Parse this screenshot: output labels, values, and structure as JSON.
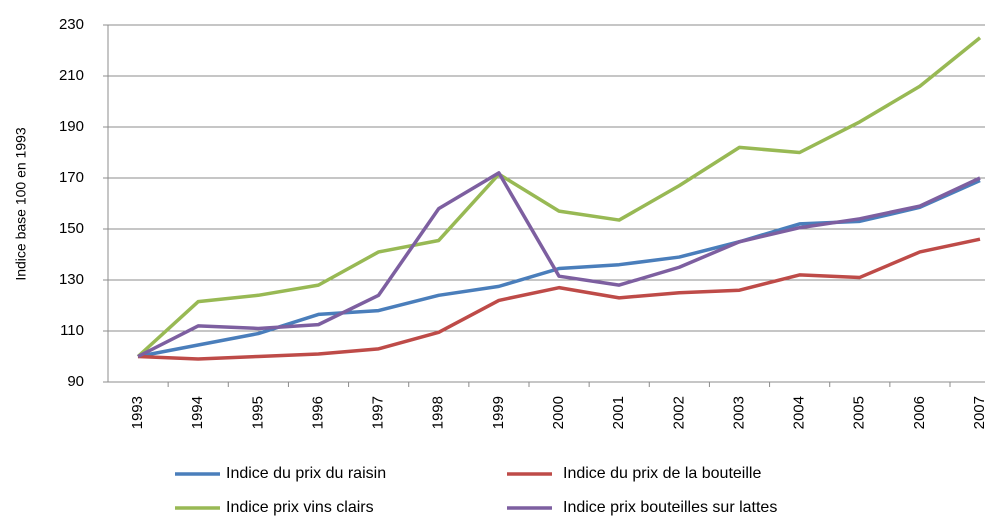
{
  "chart_data": {
    "type": "line",
    "ylabel": "Indice base 100 en 1993",
    "categories": [
      "1993",
      "1994",
      "1995",
      "1996",
      "1997",
      "1998",
      "1999",
      "2000",
      "2001",
      "2002",
      "2003",
      "2004",
      "2005",
      "2006",
      "2007"
    ],
    "series": [
      {
        "name": "Indice du prix du raisin",
        "color": "#4a7ebb",
        "values": [
          100,
          104.5,
          109,
          116.5,
          118,
          124,
          127.5,
          134.5,
          136,
          139,
          145,
          152,
          153,
          158.5,
          169
        ]
      },
      {
        "name": "Indice du prix de la bouteille",
        "color": "#be4b48",
        "values": [
          100,
          99,
          100,
          101,
          103,
          109.5,
          122,
          127,
          123,
          125,
          126,
          132,
          131,
          141,
          146
        ]
      },
      {
        "name": "Indice prix vins clairs",
        "color": "#98b954",
        "values": [
          100,
          121.5,
          124,
          128,
          141,
          145.5,
          171.5,
          157,
          153.5,
          167,
          182,
          180,
          192,
          206,
          225
        ]
      },
      {
        "name": "Indice prix bouteilles sur lattes",
        "color": "#7d5fa0",
        "values": [
          100,
          112,
          111,
          112.5,
          124,
          158,
          172,
          131.5,
          128,
          135,
          145,
          150.5,
          154,
          159,
          170
        ]
      }
    ],
    "ylim": [
      90,
      230
    ],
    "yticks": [
      90,
      110,
      130,
      150,
      170,
      190,
      210,
      230
    ],
    "grid": true
  }
}
